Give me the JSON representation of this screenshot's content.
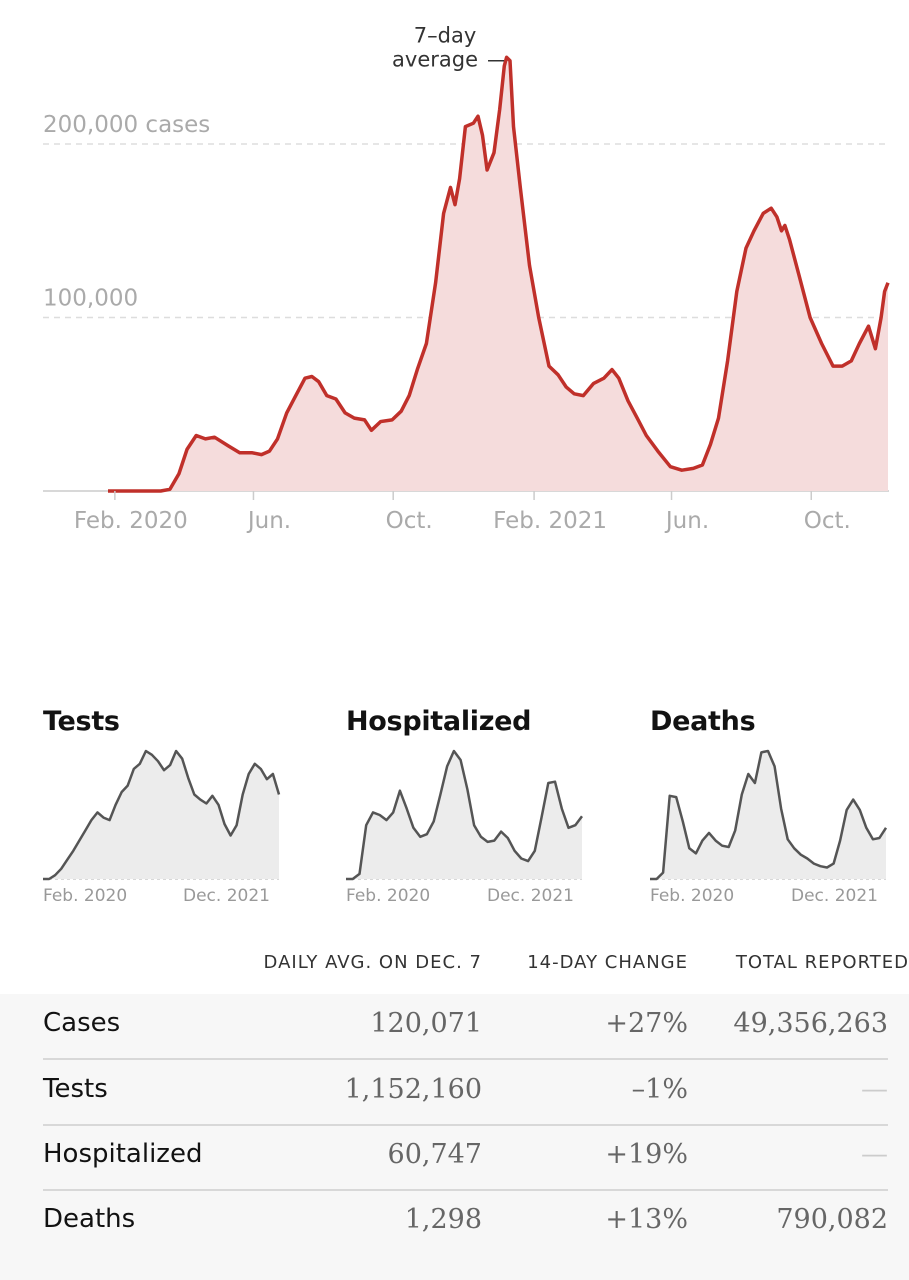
{
  "colors": {
    "accent": "#c0302a",
    "area": "#f5dcdc",
    "grid": "#dddddd",
    "spark": "#555555"
  },
  "chart_data": [
    {
      "type": "area",
      "title": "",
      "xlabel": "",
      "ylabel": "",
      "ylim": [
        0,
        258000
      ],
      "gridlines": [
        100000,
        200000
      ],
      "y_tick_labels": [
        "100,000",
        "200,000 cases"
      ],
      "x_tick_labels": [
        "Feb. 2020",
        "Jun.",
        "Oct.",
        "Feb. 2021",
        "Jun.",
        "Oct."
      ],
      "x_tick_dates": [
        "2020-02-01",
        "2020-06-01",
        "2020-10-01",
        "2021-02-01",
        "2021-06-01",
        "2021-10-01"
      ],
      "annotation": {
        "label_line1": "7–day",
        "label_line2": "average",
        "date": "2021-01-11"
      },
      "series": [
        {
          "x": [
            "2020-01-26",
            "2020-02-15",
            "2020-03-01",
            "2020-03-12",
            "2020-03-20",
            "2020-03-28",
            "2020-04-04",
            "2020-04-12",
            "2020-04-20",
            "2020-04-28",
            "2020-05-10",
            "2020-05-20",
            "2020-05-31",
            "2020-06-08",
            "2020-06-15",
            "2020-06-22",
            "2020-06-30",
            "2020-07-08",
            "2020-07-16",
            "2020-07-22",
            "2020-07-28",
            "2020-08-04",
            "2020-08-12",
            "2020-08-20",
            "2020-08-28",
            "2020-09-06",
            "2020-09-12",
            "2020-09-20",
            "2020-09-30",
            "2020-10-08",
            "2020-10-15",
            "2020-10-22",
            "2020-10-30",
            "2020-11-07",
            "2020-11-14",
            "2020-11-20",
            "2020-11-24",
            "2020-11-28",
            "2020-12-03",
            "2020-12-10",
            "2020-12-14",
            "2020-12-18",
            "2020-12-22",
            "2020-12-28",
            "2021-01-02",
            "2021-01-06",
            "2021-01-08",
            "2021-01-11",
            "2021-01-14",
            "2021-01-20",
            "2021-01-28",
            "2021-02-05",
            "2021-02-14",
            "2021-02-22",
            "2021-03-01",
            "2021-03-08",
            "2021-03-16",
            "2021-03-25",
            "2021-04-03",
            "2021-04-10",
            "2021-04-16",
            "2021-04-24",
            "2021-05-02",
            "2021-05-10",
            "2021-05-20",
            "2021-05-31",
            "2021-06-10",
            "2021-06-20",
            "2021-06-28",
            "2021-07-05",
            "2021-07-12",
            "2021-07-20",
            "2021-07-28",
            "2021-08-05",
            "2021-08-12",
            "2021-08-20",
            "2021-08-27",
            "2021-09-01",
            "2021-09-05",
            "2021-09-08",
            "2021-09-12",
            "2021-09-20",
            "2021-09-30",
            "2021-10-10",
            "2021-10-20",
            "2021-10-28",
            "2021-11-05",
            "2021-11-12",
            "2021-11-20",
            "2021-11-26",
            "2021-12-01",
            "2021-12-04",
            "2021-12-07"
          ],
          "y": [
            0,
            0,
            0,
            0,
            1000,
            10000,
            24000,
            32000,
            30000,
            31000,
            26000,
            22000,
            22000,
            21000,
            23000,
            30000,
            45000,
            55000,
            65000,
            66000,
            63000,
            55000,
            53000,
            45000,
            42000,
            41000,
            35000,
            40000,
            41000,
            46000,
            55000,
            70000,
            85000,
            120000,
            160000,
            175000,
            165000,
            180000,
            210000,
            212000,
            216000,
            205000,
            185000,
            195000,
            220000,
            245000,
            250000,
            248000,
            210000,
            175000,
            130000,
            100000,
            72000,
            67000,
            60000,
            56000,
            55000,
            62000,
            65000,
            70000,
            65000,
            52000,
            42000,
            32000,
            23000,
            14000,
            12000,
            13000,
            15000,
            27000,
            42000,
            75000,
            115000,
            140000,
            150000,
            160000,
            163000,
            158000,
            150000,
            153000,
            145000,
            125000,
            100000,
            85000,
            72000,
            72000,
            75000,
            85000,
            95000,
            82000,
            100000,
            115000,
            120000
          ]
        }
      ]
    },
    {
      "type": "area",
      "title": "Tests",
      "x_tick_labels": [
        "Feb. 2020",
        "Dec. 2021"
      ],
      "values": [
        0,
        0,
        0.03,
        0.08,
        0.15,
        0.22,
        0.3,
        0.38,
        0.46,
        0.52,
        0.48,
        0.46,
        0.58,
        0.68,
        0.73,
        0.86,
        0.9,
        1.0,
        0.97,
        0.92,
        0.85,
        0.89,
        1.0,
        0.94,
        0.79,
        0.66,
        0.62,
        0.59,
        0.65,
        0.58,
        0.43,
        0.34,
        0.42,
        0.66,
        0.82,
        0.9,
        0.86,
        0.78,
        0.82,
        0.66
      ]
    },
    {
      "type": "area",
      "title": "Hospitalized",
      "x_tick_labels": [
        "Feb. 2020",
        "Dec. 2021"
      ],
      "values": [
        0,
        0,
        0.04,
        0.42,
        0.52,
        0.5,
        0.46,
        0.52,
        0.69,
        0.55,
        0.4,
        0.33,
        0.35,
        0.45,
        0.66,
        0.88,
        1.0,
        0.93,
        0.7,
        0.42,
        0.33,
        0.29,
        0.3,
        0.37,
        0.32,
        0.22,
        0.16,
        0.14,
        0.22,
        0.48,
        0.75,
        0.76,
        0.55,
        0.4,
        0.42,
        0.49
      ]
    },
    {
      "type": "area",
      "title": "Deaths",
      "x_tick_labels": [
        "Feb. 2020",
        "Dec. 2021"
      ],
      "values": [
        0,
        0,
        0.05,
        0.65,
        0.64,
        0.45,
        0.24,
        0.2,
        0.3,
        0.36,
        0.3,
        0.26,
        0.25,
        0.38,
        0.66,
        0.82,
        0.75,
        0.99,
        1.0,
        0.88,
        0.55,
        0.31,
        0.24,
        0.19,
        0.16,
        0.12,
        0.1,
        0.09,
        0.12,
        0.3,
        0.54,
        0.62,
        0.54,
        0.4,
        0.31,
        0.32,
        0.4
      ]
    }
  ],
  "table": {
    "headers": [
      "DAILY AVG. ON DEC. 7",
      "14-DAY CHANGE",
      "TOTAL REPORTED"
    ],
    "rows": [
      {
        "label": "Cases",
        "avg": "120,071",
        "change": "+27%",
        "total": "49,356,263"
      },
      {
        "label": "Tests",
        "avg": "1,152,160",
        "change": "–1%",
        "total": "—"
      },
      {
        "label": "Hospitalized",
        "avg": "60,747",
        "change": "+19%",
        "total": "—"
      },
      {
        "label": "Deaths",
        "avg": "1,298",
        "change": "+13%",
        "total": "790,082"
      }
    ]
  }
}
